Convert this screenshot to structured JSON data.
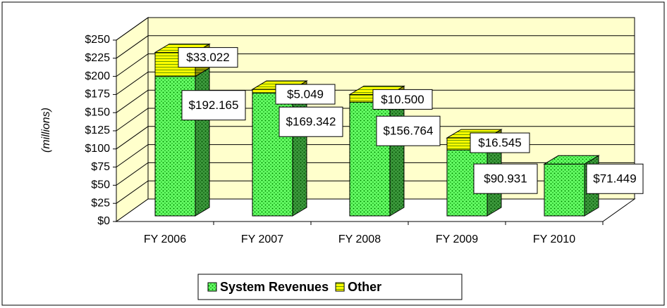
{
  "chart_data": {
    "type": "bar3d-stacked",
    "y_axis_label": "(millions)",
    "categories": [
      "FY 2006",
      "FY 2007",
      "FY 2008",
      "FY 2009",
      "FY 2010"
    ],
    "series": [
      {
        "name": "System Revenues",
        "color": "#66ff66",
        "values": [
          192.165,
          169.342,
          156.764,
          90.931,
          71.449
        ],
        "value_labels": [
          "$192.165",
          "$169.342",
          "$156.764",
          "$90.931",
          "$71.449"
        ]
      },
      {
        "name": "Other",
        "color": "#ffff00",
        "values": [
          33.022,
          5.049,
          10.5,
          16.545,
          null
        ],
        "value_labels": [
          "$33.022",
          "$5.049",
          "$10.500",
          "$16.545",
          null
        ]
      }
    ],
    "ylim": [
      0,
      250
    ],
    "yticks": [
      {
        "value": 0,
        "label": "$0"
      },
      {
        "value": 25,
        "label": "$25"
      },
      {
        "value": 50,
        "label": "$50"
      },
      {
        "value": 75,
        "label": "$75"
      },
      {
        "value": 100,
        "label": "$100"
      },
      {
        "value": 125,
        "label": "$125"
      },
      {
        "value": 150,
        "label": "$150"
      },
      {
        "value": 175,
        "label": "$175"
      },
      {
        "value": 200,
        "label": "$200"
      },
      {
        "value": 225,
        "label": "$225"
      },
      {
        "value": 250,
        "label": "$250"
      }
    ],
    "grid": true,
    "legend": "bottom"
  }
}
